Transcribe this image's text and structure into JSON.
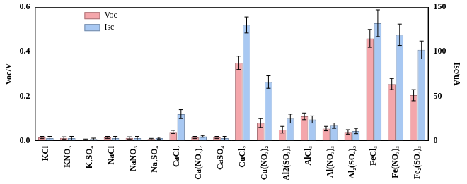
{
  "chart_data": {
    "type": "bar",
    "categories": [
      "KCl",
      "KNO₃",
      "K₂SO₄",
      "NaCl",
      "NaNO₃",
      "Na₂SO₄",
      "CaCl₂",
      "Ca(NO₃)₂",
      "CaSO₄",
      "CuCl₂",
      "Cu(NO₃)₂",
      "Al2(SO₃)₃",
      "AlCl₃",
      "Al(NO₃)₃",
      "Al₂(SO₄)₃",
      "FeCl₃",
      "Fe(NO₃)₃",
      "Fe₂(SO₄)₃"
    ],
    "series": [
      {
        "name": "Voc",
        "color": "#f4a6ab",
        "axis": "y",
        "values": [
          0.015,
          0.013,
          0.005,
          0.015,
          0.013,
          0.008,
          0.04,
          0.015,
          0.015,
          0.35,
          0.08,
          0.05,
          0.11,
          0.055,
          0.04,
          0.46,
          0.255,
          0.205
        ],
        "errors": [
          0.005,
          0.005,
          0.003,
          0.005,
          0.005,
          0.003,
          0.007,
          0.005,
          0.005,
          0.03,
          0.02,
          0.015,
          0.015,
          0.01,
          0.01,
          0.04,
          0.025,
          0.025
        ]
      },
      {
        "name": "Isc",
        "color": "#a8c8f2",
        "axis": "y2",
        "values": [
          3,
          3,
          2,
          3,
          3,
          3,
          30,
          5,
          3,
          130,
          66,
          25,
          24,
          17,
          11,
          132,
          119,
          102
        ],
        "errors": [
          2,
          2,
          1,
          2,
          2,
          1,
          5,
          1,
          2,
          9,
          7,
          5,
          4,
          3,
          3,
          15,
          12,
          10
        ]
      }
    ],
    "y_label": "Voc/V",
    "y2_label": "Isc/uA",
    "ylim": [
      0,
      0.6
    ],
    "yticks": [
      {
        "value": 0,
        "label": "0.0"
      },
      {
        "value": 0.2,
        "label": "0.2"
      },
      {
        "value": 0.4,
        "label": "0.4"
      },
      {
        "value": 0.6,
        "label": "0.6"
      }
    ],
    "y2lim": [
      0,
      150
    ],
    "y2ticks": [
      0,
      50,
      100,
      150
    ],
    "grid": false,
    "legend": "upper left"
  }
}
